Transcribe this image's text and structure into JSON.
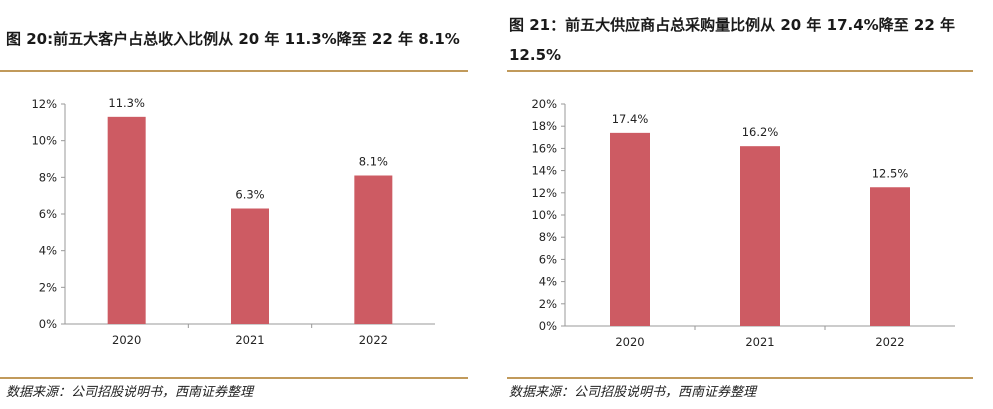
{
  "panels": [
    {
      "title": "图 20:前五大客户占总收入比例从 20 年 11.3%降至 22 年 8.1%",
      "source": "数据来源：公司招股说明书，西南证券整理"
    },
    {
      "title": "图 21：前五大供应商占总采购量比例从 20 年 17.4%降至 22 年 12.5%",
      "source": "数据来源：公司招股说明书，西南证券整理"
    }
  ],
  "chart_data": [
    {
      "type": "bar",
      "categories": [
        "2020",
        "2021",
        "2022"
      ],
      "values": [
        11.3,
        6.3,
        8.1
      ],
      "data_labels": [
        "11.3%",
        "6.3%",
        "8.1%"
      ],
      "ylim": [
        0,
        12
      ],
      "yticks": [
        0,
        2,
        4,
        6,
        8,
        10,
        12
      ],
      "ytick_labels": [
        "0%",
        "2%",
        "4%",
        "6%",
        "8%",
        "10%",
        "12%"
      ],
      "bar_color": "#cd5b63",
      "grid": false,
      "legend": "none"
    },
    {
      "type": "bar",
      "categories": [
        "2020",
        "2021",
        "2022"
      ],
      "values": [
        17.4,
        16.2,
        12.5
      ],
      "data_labels": [
        "17.4%",
        "16.2%",
        "12.5%"
      ],
      "ylim": [
        0,
        20
      ],
      "yticks": [
        0,
        2,
        4,
        6,
        8,
        10,
        12,
        14,
        16,
        18,
        20
      ],
      "ytick_labels": [
        "0%",
        "2%",
        "4%",
        "6%",
        "8%",
        "10%",
        "12%",
        "14%",
        "16%",
        "18%",
        "20%"
      ],
      "bar_color": "#cd5b63",
      "grid": false,
      "legend": "none"
    }
  ]
}
